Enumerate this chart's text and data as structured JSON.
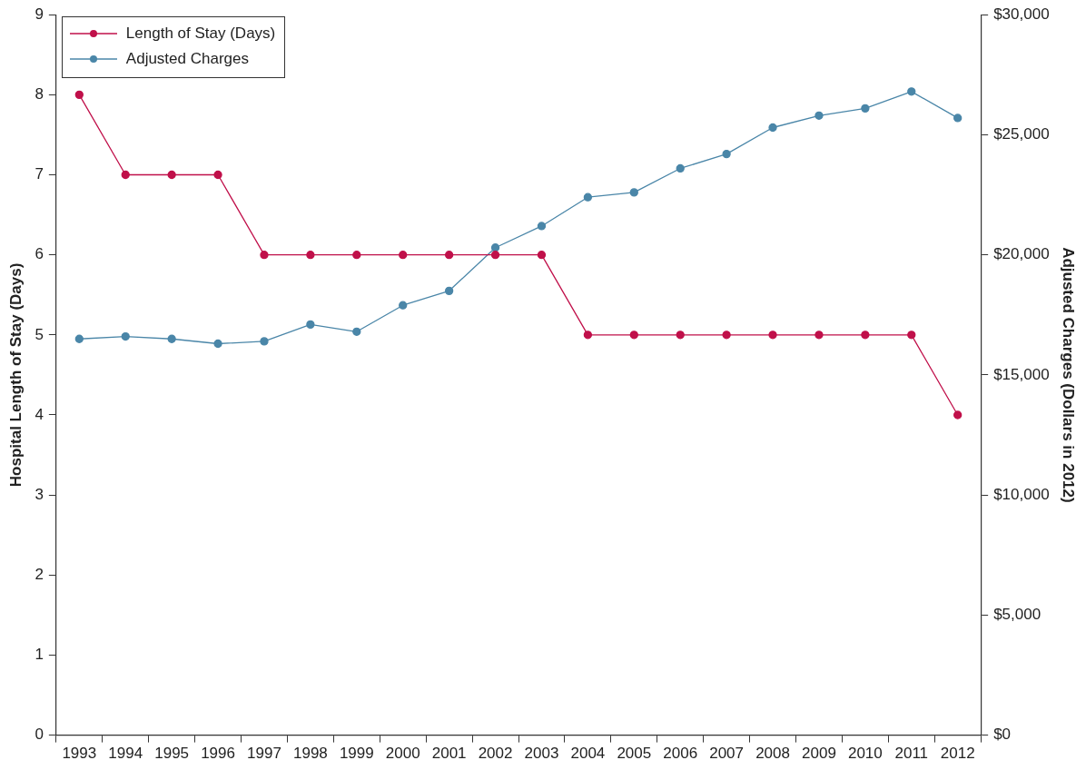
{
  "chart_data": {
    "type": "line",
    "categories": [
      "1993",
      "1994",
      "1995",
      "1996",
      "1997",
      "1998",
      "1999",
      "2000",
      "2001",
      "2002",
      "2003",
      "2004",
      "2005",
      "2006",
      "2007",
      "2008",
      "2009",
      "2010",
      "2011",
      "2012"
    ],
    "series": [
      {
        "name": "Length of Stay (Days)",
        "color": "#c0104a",
        "values": [
          8,
          7,
          7,
          7,
          6,
          6,
          6,
          6,
          6,
          6,
          6,
          5,
          5,
          5,
          5,
          5,
          5,
          5,
          5,
          4
        ]
      },
      {
        "name": "Adjusted Charges",
        "color": "#4a86a8",
        "axis": "y2",
        "values": [
          16500,
          16600,
          16500,
          16300,
          16400,
          17100,
          16800,
          17900,
          18500,
          20300,
          21200,
          22400,
          22600,
          23600,
          24200,
          25300,
          25800,
          26100,
          26800,
          25700
        ]
      }
    ],
    "ylabel": "Hospital Length of Stay (Days)",
    "y2label": "Adjusted Charges (Dollars in 2012)",
    "ylim": [
      0,
      9
    ],
    "yticks": [
      0,
      1,
      2,
      3,
      4,
      5,
      6,
      7,
      8,
      9
    ],
    "y2lim": [
      0,
      30000
    ],
    "y2ticks": [
      {
        "value": 0,
        "label": "$0"
      },
      {
        "value": 5000,
        "label": "$5,000"
      },
      {
        "value": 10000,
        "label": "$10,000"
      },
      {
        "value": 15000,
        "label": "$15,000"
      },
      {
        "value": 20000,
        "label": "$20,000"
      },
      {
        "value": 25000,
        "label": "$25,000"
      },
      {
        "value": 30000,
        "label": "$30,000"
      }
    ],
    "grid": false,
    "legend": "top left",
    "marker": "circle",
    "line_style": "solid"
  }
}
